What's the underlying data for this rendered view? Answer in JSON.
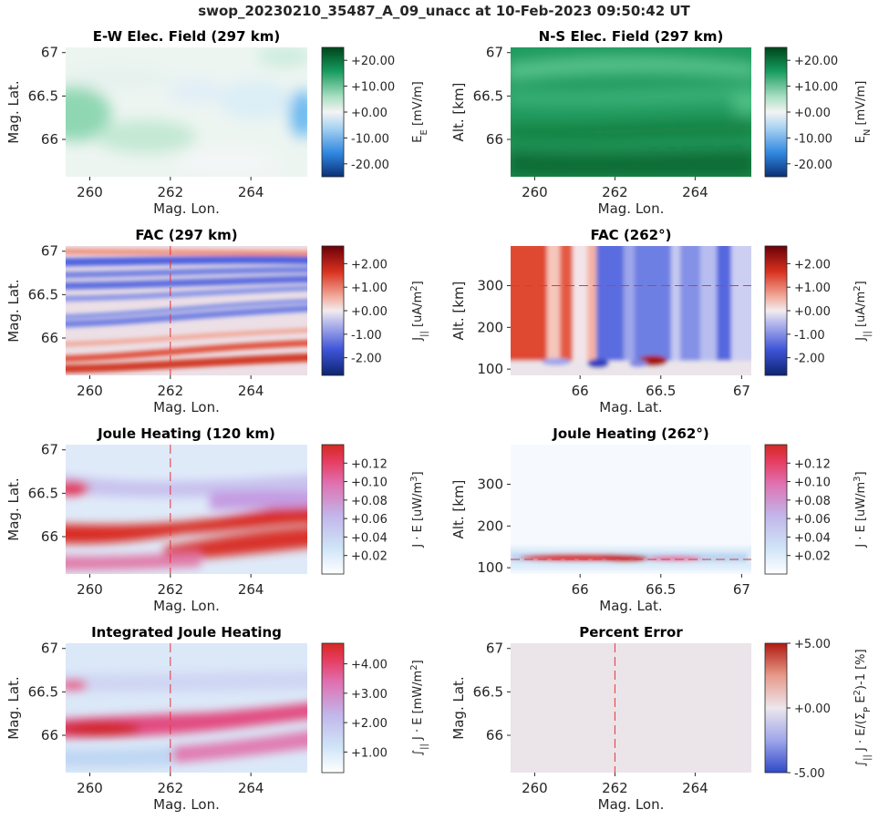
{
  "figure": {
    "title": "swop_20230210_35487_A_09_unacc at 10-Feb-2023 09:50:42 UT"
  },
  "chart_data": [
    {
      "id": "ew",
      "type": "heatmap",
      "title": "E-W Elec. Field (297 km)",
      "xlabel": "Mag. Lon.",
      "ylabel": "Mag. Lat.",
      "xlim": [
        259.4,
        265.4
      ],
      "ylim": [
        65.57,
        67.06
      ],
      "xticks": [
        "260",
        "262",
        "264"
      ],
      "xtick_values": [
        260,
        262,
        264
      ],
      "yticks": [
        "66",
        "66.5",
        "67"
      ],
      "ytick_values": [
        66,
        66.5,
        67
      ],
      "colormap": "diverging-blue-green",
      "colorbar": {
        "label": "E_E [mV/m]",
        "range": [
          -25,
          25
        ],
        "ticks": [
          "-20.00",
          "-10.00",
          "+0.00",
          "+10.00",
          "+20.00"
        ],
        "tick_values": [
          -20,
          -10,
          0,
          10,
          20
        ]
      },
      "reference_line": null
    },
    {
      "id": "ns",
      "type": "heatmap",
      "title": "N-S Elec. Field (297 km)",
      "xlabel": "Mag. Lon.",
      "ylabel": "Alt. [km]",
      "xlim": [
        259.4,
        265.4
      ],
      "ylim": [
        65.57,
        67.06
      ],
      "xticks": [
        "260",
        "262",
        "264"
      ],
      "xtick_values": [
        260,
        262,
        264
      ],
      "yticks": [
        "66",
        "66.5",
        "67"
      ],
      "ytick_values": [
        66,
        66.5,
        67
      ],
      "colormap": "diverging-blue-green",
      "colorbar": {
        "label": "E_N [mV/m]",
        "range": [
          -25,
          25
        ],
        "ticks": [
          "-20.00",
          "-10.00",
          "+0.00",
          "+10.00",
          "+20.00"
        ],
        "tick_values": [
          -20,
          -10,
          0,
          10,
          20
        ]
      },
      "reference_line": null
    },
    {
      "id": "fac_lon",
      "type": "heatmap",
      "title": "FAC (297 km)",
      "xlabel": "Mag. Lon.",
      "ylabel": "Mag. Lat.",
      "xlim": [
        259.4,
        265.4
      ],
      "ylim": [
        65.57,
        67.06
      ],
      "xticks": [
        "260",
        "262",
        "264"
      ],
      "xtick_values": [
        260,
        262,
        264
      ],
      "yticks": [
        "66",
        "66.5",
        "67"
      ],
      "ytick_values": [
        66,
        66.5,
        67
      ],
      "colormap": "diverging-blue-red",
      "colorbar": {
        "label": "J_|| [uA/m^2]",
        "range": [
          -2.75,
          2.75
        ],
        "ticks": [
          "-2.00",
          "-1.00",
          "+0.00",
          "+1.00",
          "+2.00"
        ],
        "tick_values": [
          -2,
          -1,
          0,
          1,
          2
        ]
      },
      "reference_line": {
        "axis": "x",
        "value": 262
      }
    },
    {
      "id": "fac_alt",
      "type": "heatmap",
      "title": "FAC (262°)",
      "xlabel": "Mag. Lat.",
      "ylabel": "Alt. [km]",
      "xlim": [
        65.57,
        67.06
      ],
      "ylim": [
        85,
        395
      ],
      "xticks": [
        "66",
        "66.5",
        "67"
      ],
      "xtick_values": [
        66,
        66.5,
        67
      ],
      "yticks": [
        "100",
        "200",
        "300"
      ],
      "ytick_values": [
        100,
        200,
        300
      ],
      "colormap": "diverging-blue-red",
      "colorbar": {
        "label": "J_|| [uA/m^2]",
        "range": [
          -2.75,
          2.75
        ],
        "ticks": [
          "-2.00",
          "-1.00",
          "+0.00",
          "+1.00",
          "+2.00"
        ],
        "tick_values": [
          -2,
          -1,
          0,
          1,
          2
        ]
      },
      "reference_line": {
        "axis": "y",
        "value": 300
      }
    },
    {
      "id": "jh_lon",
      "type": "heatmap",
      "title": "Joule Heating (120 km)",
      "xlabel": "Mag. Lon.",
      "ylabel": "Mag. Lat.",
      "xlim": [
        259.4,
        265.4
      ],
      "ylim": [
        65.57,
        67.06
      ],
      "xticks": [
        "260",
        "262",
        "264"
      ],
      "xtick_values": [
        260,
        262,
        264
      ],
      "yticks": [
        "66",
        "66.5",
        "67"
      ],
      "ytick_values": [
        66,
        66.5,
        67
      ],
      "colormap": "sequential-white-blue-red",
      "colorbar": {
        "label": "J · E [uW/m^3]",
        "range": [
          0,
          0.14
        ],
        "ticks": [
          "+0.02",
          "+0.04",
          "+0.06",
          "+0.08",
          "+0.10",
          "+0.12"
        ],
        "tick_values": [
          0.02,
          0.04,
          0.06,
          0.08,
          0.1,
          0.12
        ]
      },
      "reference_line": {
        "axis": "x",
        "value": 262
      }
    },
    {
      "id": "jh_alt",
      "type": "heatmap",
      "title": "Joule Heating (262°)",
      "xlabel": "Mag. Lat.",
      "ylabel": "Alt. [km]",
      "xlim": [
        65.57,
        67.06
      ],
      "ylim": [
        85,
        395
      ],
      "xticks": [
        "66",
        "66.5",
        "67"
      ],
      "xtick_values": [
        66,
        66.5,
        67
      ],
      "yticks": [
        "100",
        "200",
        "300"
      ],
      "ytick_values": [
        100,
        200,
        300
      ],
      "colormap": "sequential-white-blue-red",
      "colorbar": {
        "label": "J · E [uW/m^3]",
        "range": [
          0,
          0.14
        ],
        "ticks": [
          "+0.02",
          "+0.04",
          "+0.06",
          "+0.08",
          "+0.10",
          "+0.12"
        ],
        "tick_values": [
          0.02,
          0.04,
          0.06,
          0.08,
          0.1,
          0.12
        ]
      },
      "reference_line": {
        "axis": "y",
        "value": 120
      }
    },
    {
      "id": "ijh",
      "type": "heatmap",
      "title": "Integrated Joule Heating",
      "xlabel": "Mag. Lon.",
      "ylabel": "Mag. Lat.",
      "xlim": [
        259.4,
        265.4
      ],
      "ylim": [
        65.57,
        67.06
      ],
      "xticks": [
        "260",
        "262",
        "264"
      ],
      "xtick_values": [
        260,
        262,
        264
      ],
      "yticks": [
        "66",
        "66.5",
        "67"
      ],
      "ytick_values": [
        66,
        66.5,
        67
      ],
      "colormap": "sequential-white-blue-red",
      "colorbar": {
        "label": "∫|| J · E [mW/m^2]",
        "range": [
          0.3,
          4.7
        ],
        "ticks": [
          "+1.00",
          "+2.00",
          "+3.00",
          "+4.00"
        ],
        "tick_values": [
          1,
          2,
          3,
          4
        ]
      },
      "reference_line": {
        "axis": "x",
        "value": 262
      }
    },
    {
      "id": "perr",
      "type": "heatmap",
      "title": "Percent Error",
      "xlabel": "Mag. Lon.",
      "ylabel": "Mag. Lat.",
      "xlim": [
        259.4,
        265.4
      ],
      "ylim": [
        65.57,
        67.06
      ],
      "xticks": [
        "260",
        "262",
        "264"
      ],
      "xtick_values": [
        260,
        262,
        264
      ],
      "yticks": [
        "66",
        "66.5",
        "67"
      ],
      "ytick_values": [
        66,
        66.5,
        67
      ],
      "colormap": "diverging-blue-red",
      "colorbar": {
        "label": "∫|| J · E/(Σ_P E^2)-1 [%]",
        "range": [
          -5,
          5
        ],
        "ticks": [
          "-5.00",
          "+0.00",
          "+5.00"
        ],
        "tick_values": [
          -5,
          0,
          5
        ]
      },
      "reference_line": {
        "axis": "x",
        "value": 262
      }
    }
  ]
}
